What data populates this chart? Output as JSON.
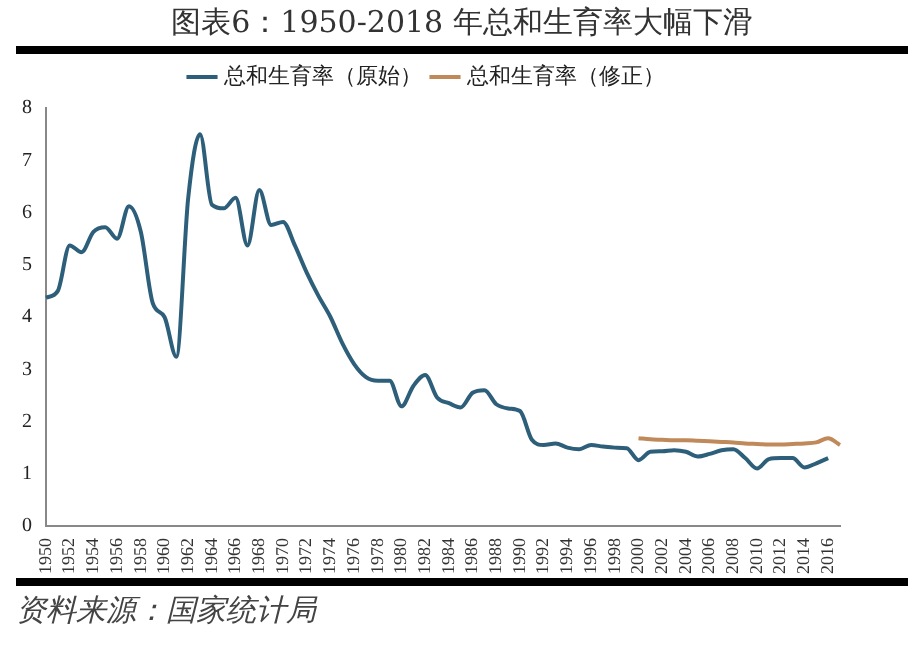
{
  "chart_data": {
    "type": "line",
    "title": "图表6：1950-2018 年总和生育率大幅下滑",
    "categories": [
      "1950",
      null,
      "1952",
      null,
      "1954",
      null,
      "1956",
      null,
      "1958",
      null,
      "1960",
      null,
      "1962",
      null,
      "1964",
      null,
      "1966",
      null,
      "1968",
      null,
      "1970",
      null,
      "1972",
      null,
      "1974",
      null,
      "1976",
      null,
      "1978",
      null,
      "1980",
      null,
      "1982",
      null,
      "1984",
      null,
      "1986",
      null,
      "1988",
      null,
      "1990",
      null,
      "1992",
      null,
      "1994",
      null,
      "1996",
      null,
      "1998",
      null,
      "2000",
      null,
      "2002",
      null,
      "2004",
      null,
      "2006",
      null,
      "2008",
      null,
      "2010",
      null,
      "2012",
      null,
      "2014",
      null,
      "2016",
      null
    ],
    "series": [
      {
        "name": "总和生育率（原始）",
        "color": "#2e5f7a",
        "values": [
          4.37,
          4.5,
          5.37,
          5.24,
          5.63,
          5.72,
          5.5,
          6.12,
          5.63,
          4.27,
          4.0,
          3.24,
          6.28,
          7.5,
          6.15,
          6.08,
          6.28,
          5.37,
          6.43,
          5.76,
          5.82,
          5.37,
          4.85,
          4.4,
          4.0,
          3.5,
          3.1,
          2.85,
          2.78,
          2.78,
          2.29,
          2.68,
          2.89,
          2.46,
          2.35,
          2.27,
          2.55,
          2.6,
          2.33,
          2.25,
          2.2,
          1.65,
          1.55,
          1.58,
          1.5,
          1.47,
          1.55,
          1.52,
          1.5,
          1.49,
          1.26,
          1.42,
          1.43,
          1.45,
          1.42,
          1.33,
          1.38,
          1.45,
          1.47,
          1.3,
          1.1,
          1.28,
          1.3,
          1.3,
          1.12,
          1.2,
          1.3,
          null
        ]
      },
      {
        "name": "总和生育率（修正）",
        "color": "#c0895a",
        "values": [
          null,
          null,
          null,
          null,
          null,
          null,
          null,
          null,
          null,
          null,
          null,
          null,
          null,
          null,
          null,
          null,
          null,
          null,
          null,
          null,
          null,
          null,
          null,
          null,
          null,
          null,
          null,
          null,
          null,
          null,
          null,
          null,
          null,
          null,
          null,
          null,
          null,
          null,
          null,
          null,
          null,
          null,
          null,
          null,
          null,
          null,
          null,
          null,
          null,
          null,
          1.68,
          1.66,
          1.65,
          1.64,
          1.64,
          1.63,
          1.62,
          1.61,
          1.6,
          1.58,
          1.57,
          1.56,
          1.56,
          1.57,
          1.58,
          1.6,
          1.68,
          1.55
        ]
      }
    ],
    "ylim": [
      0,
      8
    ],
    "yticks": [
      0,
      1,
      2,
      3,
      4,
      5,
      6,
      7,
      8
    ],
    "grid": false,
    "legend": "top",
    "marker": "none",
    "line_style": "solid",
    "annotations": [
      "资料来源：国家统计局"
    ]
  }
}
